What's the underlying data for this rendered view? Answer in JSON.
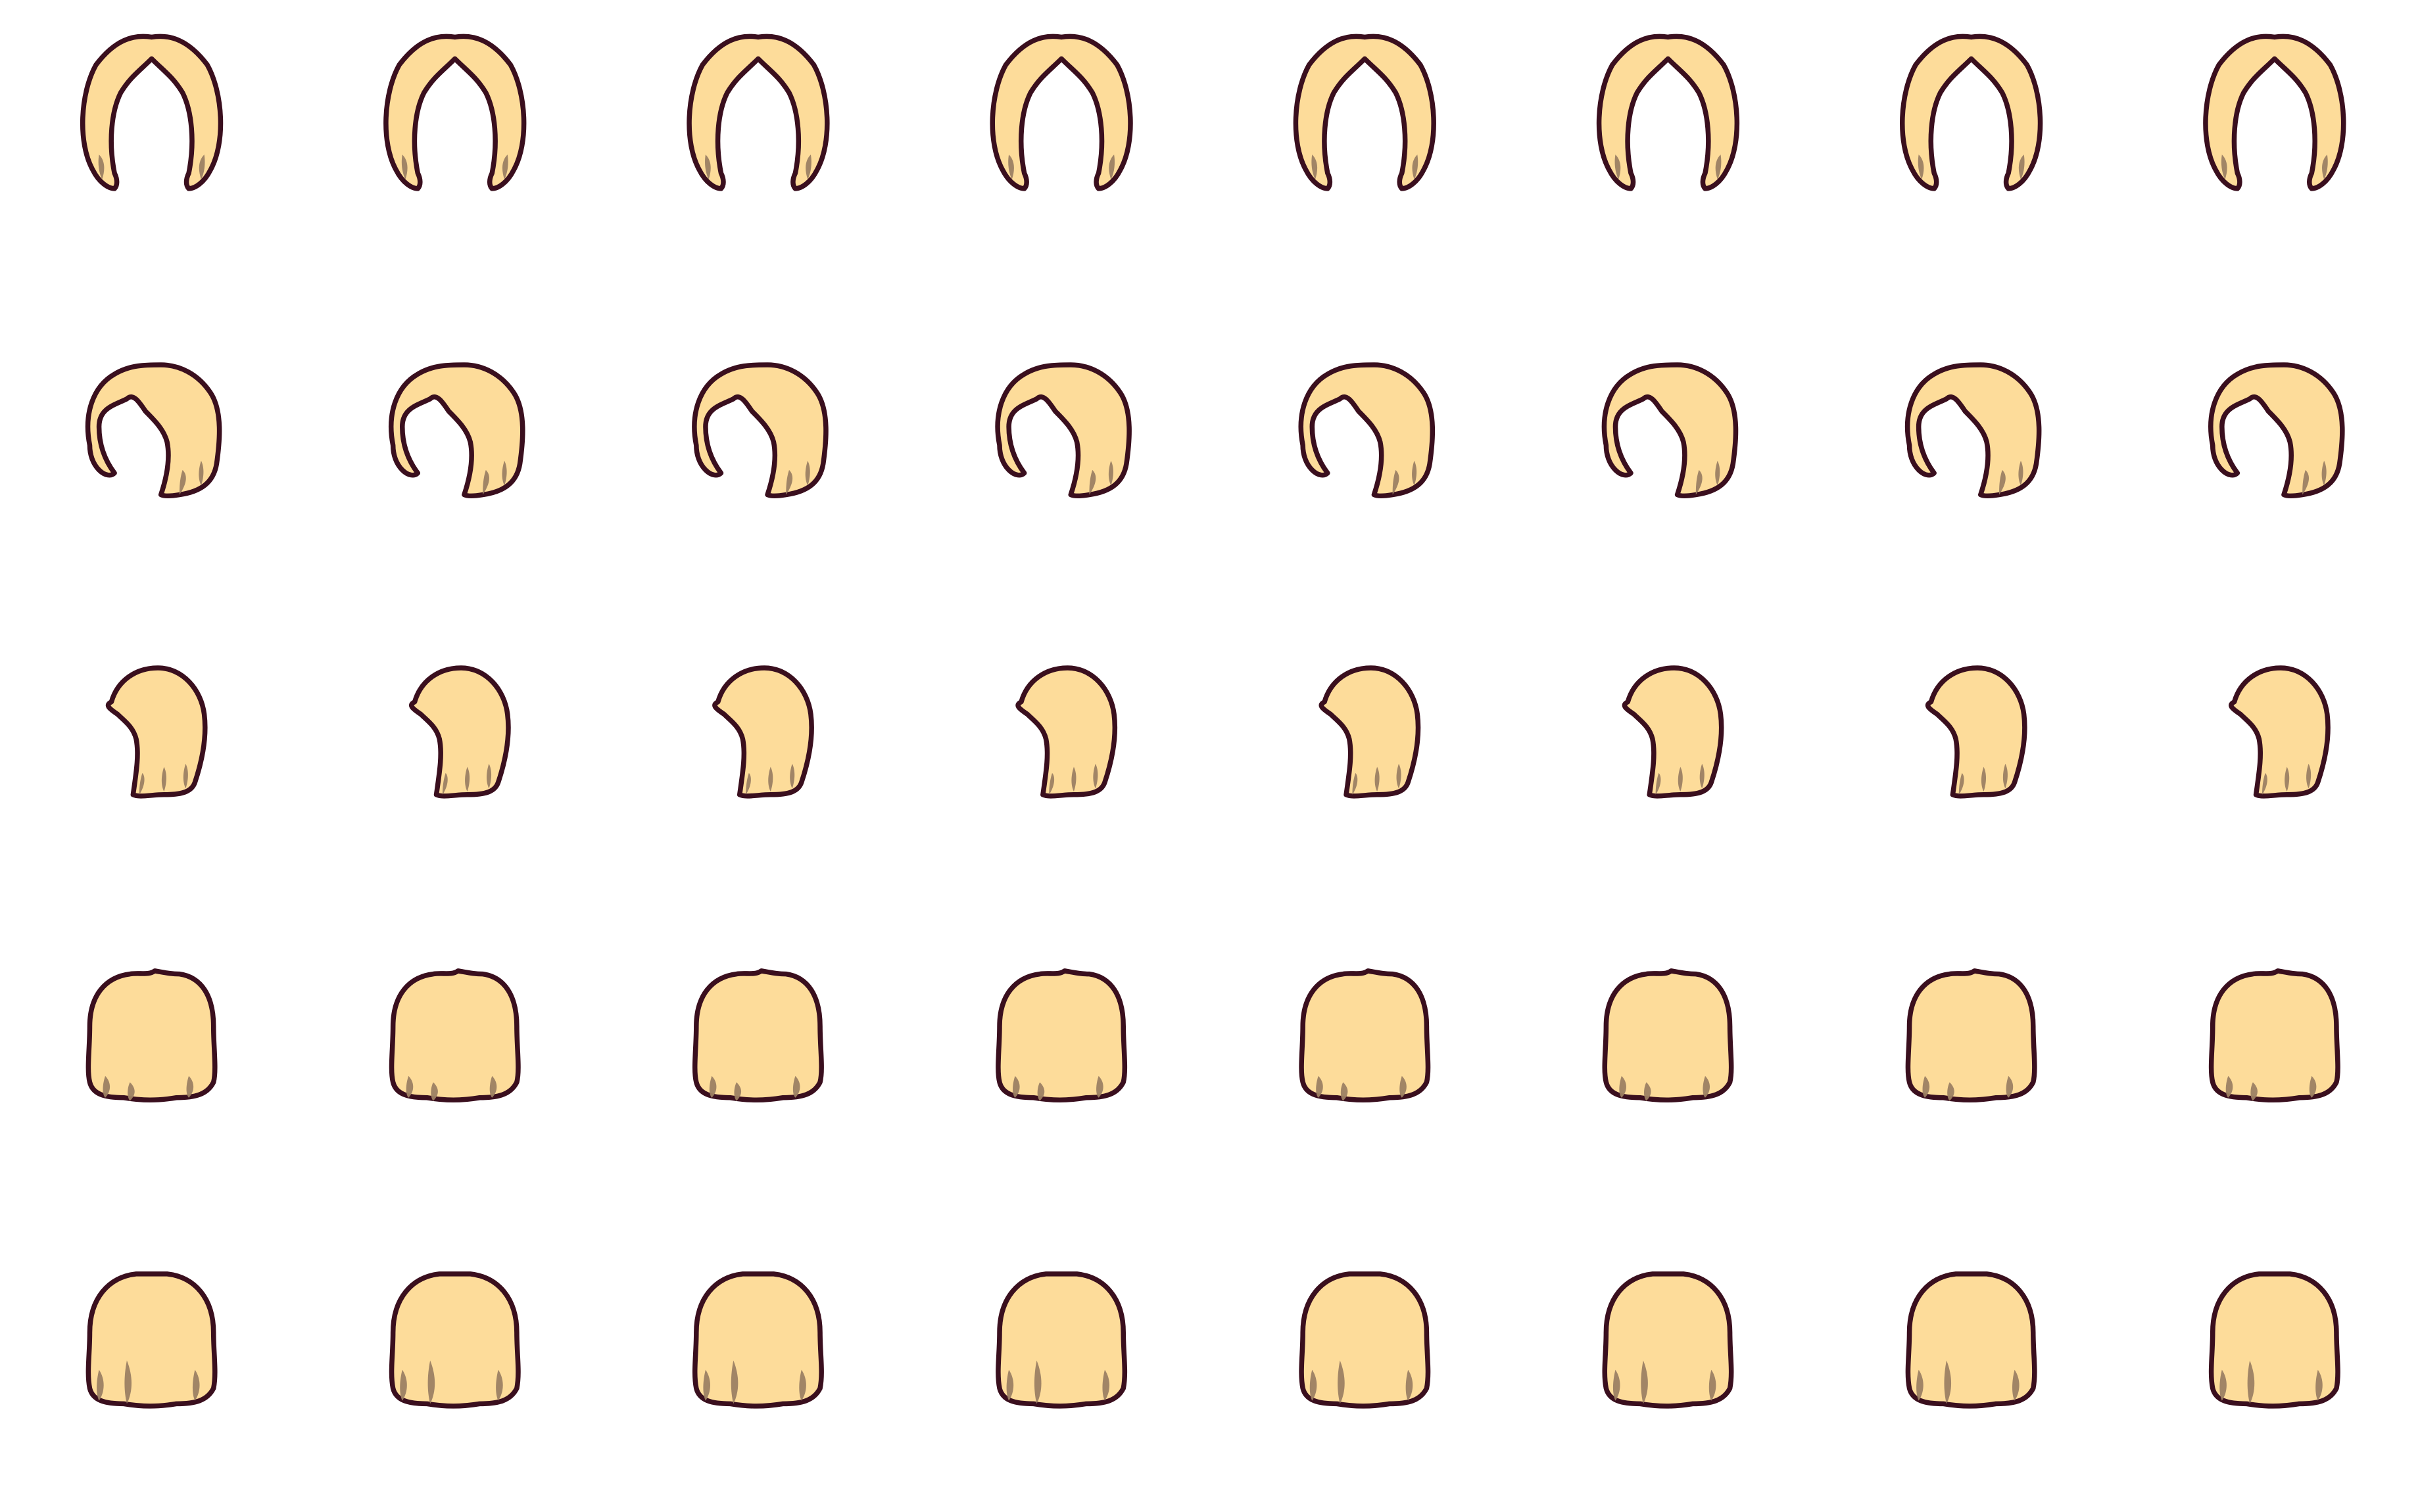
{
  "sprite_sheet": {
    "background": "#FFFFFF",
    "colors": {
      "hair_fill": "#FDDC9A",
      "outline": "#3A0F1E",
      "strand_shadow": "#9C7F63"
    },
    "rows": [
      {
        "name": "hair-sprite-row-1",
        "sprite": "hair-arch-back-icon",
        "variant": "arch",
        "count": 8
      },
      {
        "name": "hair-sprite-row-2",
        "sprite": "hair-side-sweep-icon",
        "variant": "sweep",
        "count": 8
      },
      {
        "name": "hair-sprite-row-3",
        "sprite": "hair-ponytail-side-icon",
        "variant": "side",
        "count": 8
      },
      {
        "name": "hair-sprite-row-4",
        "sprite": "hair-bob-round-icon",
        "variant": "bob",
        "count": 8
      },
      {
        "name": "hair-sprite-row-5",
        "sprite": "hair-bob-long-icon",
        "variant": "long",
        "count": 8
      }
    ]
  }
}
